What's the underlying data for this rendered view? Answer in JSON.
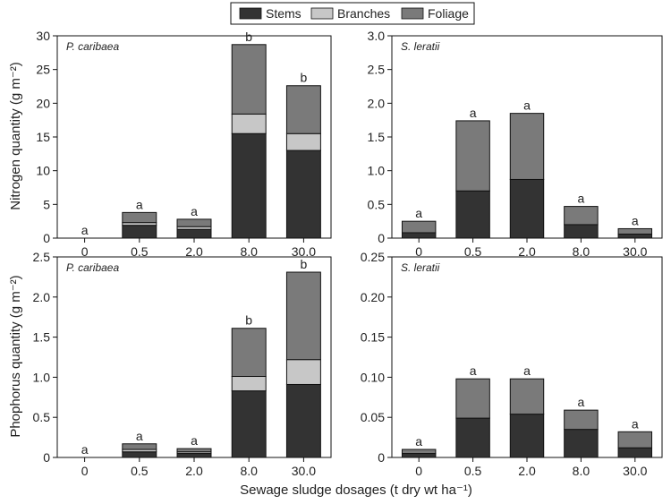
{
  "legend": {
    "items": [
      {
        "label": "Stems",
        "color": "#333333"
      },
      {
        "label": "Branches",
        "color": "#c7c7c7"
      },
      {
        "label": "Foliage",
        "color": "#7a7a7a"
      }
    ]
  },
  "axes": {
    "y_top": "Nitrogen quantity (g m⁻²)",
    "y_bottom": "Phophorus quantity (g m⁻²)",
    "x": "Sewage sludge dosages (t dry wt ha⁻¹)"
  },
  "chart_data": [
    {
      "type": "bar",
      "stacked": true,
      "panel": "top-left",
      "title": "P. caribaea",
      "categories": [
        "0",
        "0.5",
        "2.0",
        "8.0",
        "30.0"
      ],
      "ylim": [
        0,
        30
      ],
      "yticks": [
        "0",
        "5",
        "10",
        "15",
        "20",
        "25",
        "30"
      ],
      "ylabel": "Nitrogen quantity (g m⁻²)",
      "series": [
        {
          "name": "Stems",
          "values": [
            0,
            1.9,
            1.3,
            15.5,
            13.0
          ]
        },
        {
          "name": "Branches",
          "values": [
            0,
            0.4,
            0.4,
            2.9,
            2.5
          ]
        },
        {
          "name": "Foliage",
          "values": [
            0,
            1.5,
            1.1,
            10.3,
            7.1
          ]
        }
      ],
      "annotations": [
        "a",
        "a",
        "a",
        "b",
        "b"
      ]
    },
    {
      "type": "bar",
      "stacked": true,
      "panel": "top-right",
      "title": "S. leratii",
      "categories": [
        "0",
        "0.5",
        "2.0",
        "8.0",
        "30.0"
      ],
      "ylim": [
        0,
        3.0
      ],
      "yticks": [
        "0",
        "0.5",
        "1.0",
        "1.5",
        "2.0",
        "2.5",
        "3.0"
      ],
      "series": [
        {
          "name": "Stems",
          "values": [
            0.08,
            0.7,
            0.87,
            0.2,
            0.06
          ]
        },
        {
          "name": "Branches",
          "values": [
            0,
            0,
            0,
            0,
            0
          ]
        },
        {
          "name": "Foliage",
          "values": [
            0.17,
            1.04,
            0.98,
            0.27,
            0.08
          ]
        }
      ],
      "annotations": [
        "a",
        "a",
        "a",
        "a",
        "a"
      ]
    },
    {
      "type": "bar",
      "stacked": true,
      "panel": "bottom-left",
      "title": "P. caribaea",
      "categories": [
        "0",
        "0.5",
        "2.0",
        "8.0",
        "30.0"
      ],
      "ylim": [
        0,
        2.5
      ],
      "yticks": [
        "0",
        "0.5",
        "1.0",
        "1.5",
        "2.0",
        "2.5"
      ],
      "ylabel": "Phophorus quantity (g m⁻²)",
      "series": [
        {
          "name": "Stems",
          "values": [
            0,
            0.07,
            0.05,
            0.83,
            0.91
          ]
        },
        {
          "name": "Branches",
          "values": [
            0,
            0.03,
            0.02,
            0.18,
            0.31
          ]
        },
        {
          "name": "Foliage",
          "values": [
            0,
            0.07,
            0.04,
            0.6,
            1.09
          ]
        }
      ],
      "annotations": [
        "a",
        "a",
        "a",
        "b",
        "b"
      ]
    },
    {
      "type": "bar",
      "stacked": true,
      "panel": "bottom-right",
      "title": "S. leratii",
      "categories": [
        "0",
        "0.5",
        "2.0",
        "8.0",
        "30.0"
      ],
      "ylim": [
        0,
        0.25
      ],
      "yticks": [
        "0",
        "0.05",
        "0.10",
        "0.15",
        "0.20",
        "0.25"
      ],
      "series": [
        {
          "name": "Stems",
          "values": [
            0.005,
            0.049,
            0.054,
            0.035,
            0.012
          ]
        },
        {
          "name": "Branches",
          "values": [
            0,
            0,
            0,
            0,
            0
          ]
        },
        {
          "name": "Foliage",
          "values": [
            0.005,
            0.049,
            0.044,
            0.024,
            0.02
          ]
        }
      ],
      "annotations": [
        "a",
        "a",
        "a",
        "a",
        "a"
      ]
    }
  ]
}
